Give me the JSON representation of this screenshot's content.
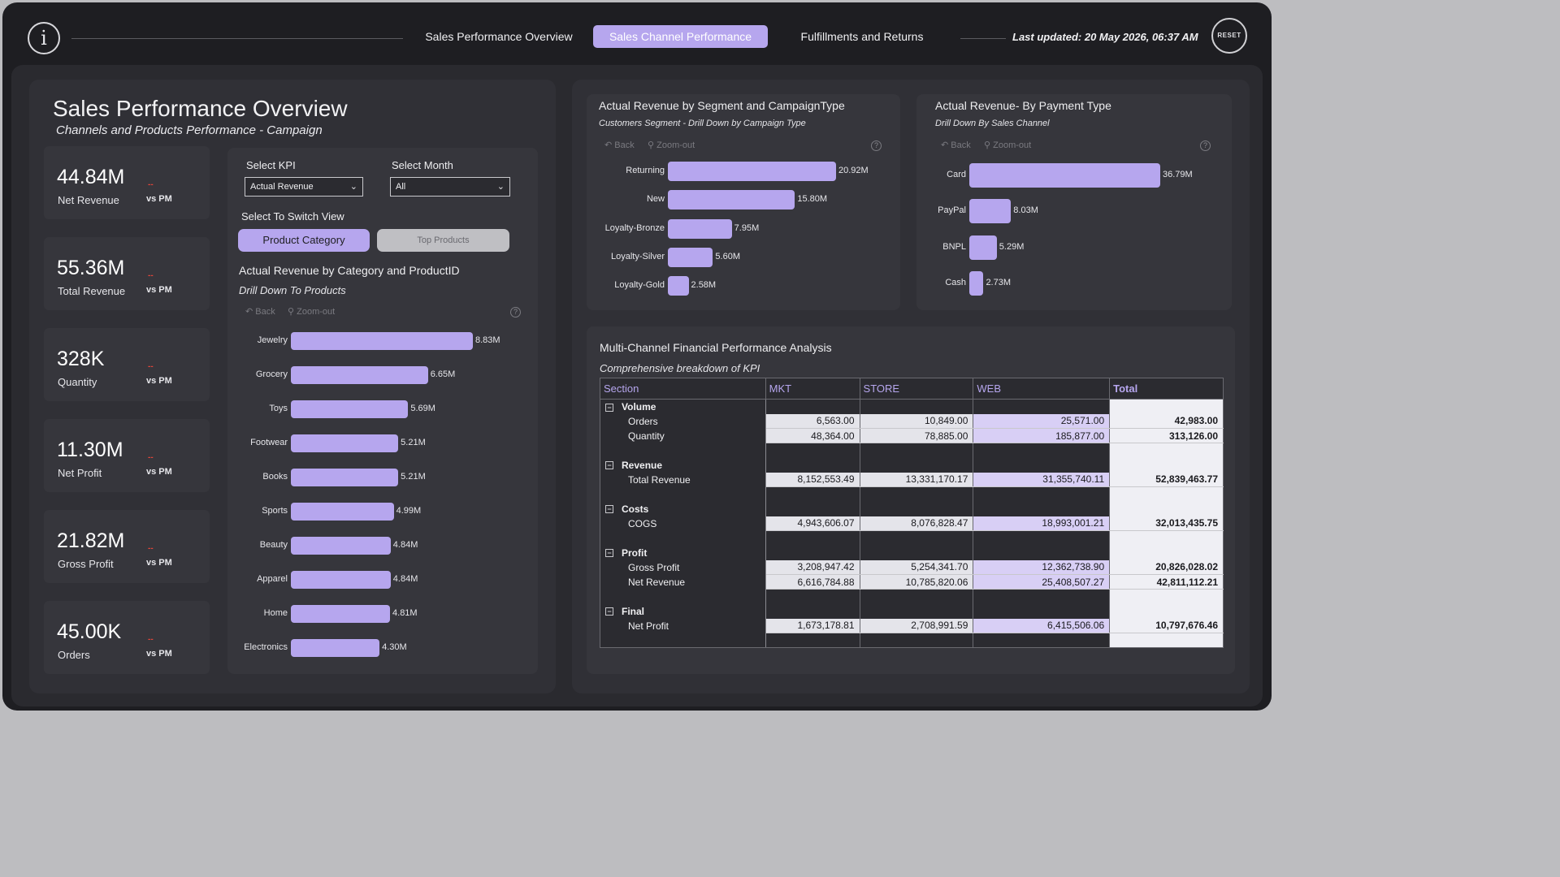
{
  "nav": {
    "tabs": [
      "Sales Performance Overview",
      "Sales Channel Performance",
      "Fulfillments and Returns"
    ],
    "active_index": 1,
    "last_updated": "Last updated: 20 May 2026, 06:37 AM",
    "reset_label": "RESET"
  },
  "page": {
    "title": "Sales Performance Overview",
    "subtitle": "Channels and Products Performance - Campaign"
  },
  "kpis": [
    {
      "value": "44.84M",
      "label": "Net Revenue",
      "delta": "--",
      "vs": "vs PM"
    },
    {
      "value": "55.36M",
      "label": "Total Revenue",
      "delta": "--",
      "vs": "vs PM"
    },
    {
      "value": "328K",
      "label": "Quantity",
      "delta": "--",
      "vs": "vs PM"
    },
    {
      "value": "11.30M",
      "label": "Net Profit",
      "delta": "--",
      "vs": "vs PM"
    },
    {
      "value": "21.82M",
      "label": "Gross Profit",
      "delta": "--",
      "vs": "vs PM"
    },
    {
      "value": "45.00K",
      "label": "Orders",
      "delta": "--",
      "vs": "vs PM"
    }
  ],
  "filters": {
    "kpi_label": "Select KPI",
    "kpi_value": "Actual Revenue",
    "month_label": "Select Month",
    "month_value": "All",
    "switch_label": "Select To Switch View",
    "switch_options": [
      "Product Category",
      "Top Products"
    ]
  },
  "chart_tools": {
    "back": "Back",
    "zoom": "Zoom-out",
    "help": "?"
  },
  "chart_data": [
    {
      "type": "bar",
      "title": "Actual Revenue by Category and ProductID",
      "subtitle": "Drill Down To Products",
      "categories": [
        "Jewelry",
        "Grocery",
        "Toys",
        "Footwear",
        "Books",
        "Sports",
        "Beauty",
        "Apparel",
        "Home",
        "Electronics"
      ],
      "values": [
        8.83,
        6.65,
        5.69,
        5.21,
        5.21,
        4.99,
        4.84,
        4.84,
        4.81,
        4.3
      ],
      "labels": [
        "8.83M",
        "6.65M",
        "5.69M",
        "5.21M",
        "5.21M",
        "4.99M",
        "4.84M",
        "4.84M",
        "4.81M",
        "4.30M"
      ]
    },
    {
      "type": "bar",
      "title": "Actual Revenue by Segment and CampaignType",
      "subtitle": "Customers Segment - Drill Down by Campaign Type",
      "categories": [
        "Returning",
        "New",
        "Loyalty-Bronze",
        "Loyalty-Silver",
        "Loyalty-Gold"
      ],
      "values": [
        20.92,
        15.8,
        7.95,
        5.6,
        2.58
      ],
      "labels": [
        "20.92M",
        "15.80M",
        "7.95M",
        "5.60M",
        "2.58M"
      ]
    },
    {
      "type": "bar",
      "title": "Actual Revenue- By Payment Type",
      "subtitle": "Drill Down By Sales Channel",
      "categories": [
        "Card",
        "PayPal",
        "BNPL",
        "Cash"
      ],
      "values": [
        36.79,
        8.03,
        5.29,
        2.73
      ],
      "labels": [
        "36.79M",
        "8.03M",
        "5.29M",
        "2.73M"
      ]
    }
  ],
  "matrix": {
    "title": "Multi-Channel Financial Performance Analysis",
    "subtitle": "Comprehensive breakdown of  KPI",
    "columns": [
      "Section",
      "MKT",
      "STORE",
      "WEB",
      "Total"
    ],
    "groups": [
      {
        "name": "Volume",
        "rows": [
          {
            "label": "Orders",
            "values": [
              "6,563.00",
              "10,849.00",
              "25,571.00"
            ],
            "total": "42,983.00"
          },
          {
            "label": "Quantity",
            "values": [
              "48,364.00",
              "78,885.00",
              "185,877.00"
            ],
            "total": "313,126.00"
          }
        ]
      },
      {
        "name": "Revenue",
        "rows": [
          {
            "label": "Total Revenue",
            "values": [
              "8,152,553.49",
              "13,331,170.17",
              "31,355,740.11"
            ],
            "total": "52,839,463.77"
          }
        ]
      },
      {
        "name": "Costs",
        "rows": [
          {
            "label": "COGS",
            "values": [
              "4,943,606.07",
              "8,076,828.47",
              "18,993,001.21"
            ],
            "total": "32,013,435.75"
          }
        ]
      },
      {
        "name": "Profit",
        "rows": [
          {
            "label": "Gross Profit",
            "values": [
              "3,208,947.42",
              "5,254,341.70",
              "12,362,738.90"
            ],
            "total": "20,826,028.02"
          },
          {
            "label": "Net Revenue",
            "values": [
              "6,616,784.88",
              "10,785,820.06",
              "25,408,507.27"
            ],
            "total": "42,811,112.21"
          }
        ]
      },
      {
        "name": "Final",
        "rows": [
          {
            "label": "Net Profit",
            "values": [
              "1,673,178.81",
              "2,708,991.59",
              "6,415,506.06"
            ],
            "total": "10,797,676.46"
          }
        ]
      }
    ]
  }
}
